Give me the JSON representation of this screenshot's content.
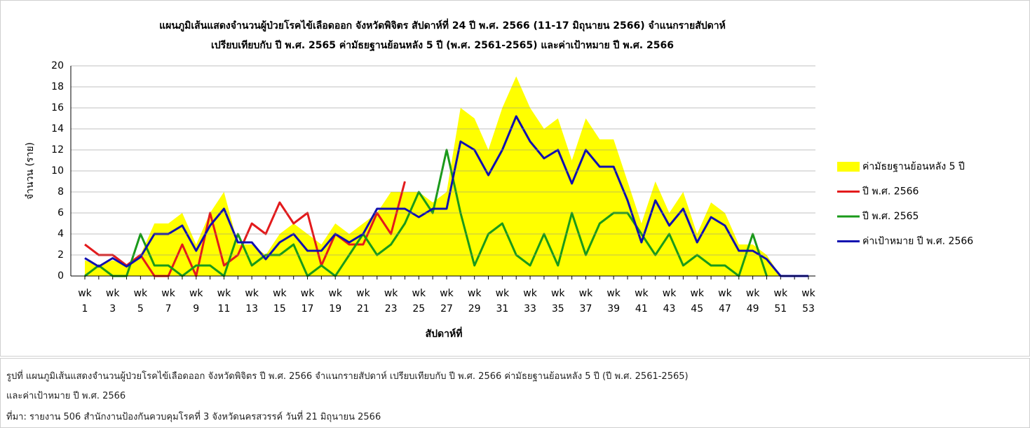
{
  "chart_data": {
    "type": "line",
    "title": "แผนภูมิเส้นแสดงจำนวนผู้ป่วยโรคไข้เลือดออก จังหวัดพิจิตร สัปดาห์ที่ 24 ปี พ.ศ. 2566 (11-17 มิถุนายน 2566) จำแนกรายสัปดาห์",
    "subtitle": "เปรียบเทียบกับ ปี พ.ศ. 2565 ค่ามัธยฐานย้อนหลัง 5 ปี (พ.ศ. 2561-2565) และค่าเป้าหมาย ปี พ.ศ. 2566",
    "y_label": "จำนวน (ราย)",
    "x_label": "สัปดาห์ที่",
    "categories": [
      "wk 1",
      null,
      "wk 3",
      null,
      "wk 5",
      null,
      "wk 7",
      null,
      "wk 9",
      null,
      "wk 11",
      null,
      "wk 13",
      null,
      "wk 15",
      null,
      "wk 17",
      null,
      "wk 19",
      null,
      "wk 21",
      null,
      "wk 23",
      null,
      "wk 25",
      null,
      "wk 27",
      null,
      "wk 29",
      null,
      "wk 31",
      null,
      "wk 33",
      null,
      "wk 35",
      null,
      "wk 37",
      null,
      "wk 39",
      null,
      "wk 41",
      null,
      "wk 43",
      null,
      "wk 45",
      null,
      "wk 47",
      null,
      "wk 49",
      null,
      "wk 51",
      null,
      "wk 53"
    ],
    "ylim": [
      0,
      20
    ],
    "yticks": [
      0,
      2,
      4,
      6,
      8,
      10,
      12,
      14,
      16,
      18,
      20
    ],
    "grid": true,
    "legend": "right",
    "series": [
      {
        "name": "ค่ามัธยฐานย้อนหลัง 5 ปี",
        "type": "area",
        "color": "#ffff00",
        "values": [
          1.5,
          1,
          1.5,
          1,
          2,
          5,
          5,
          6,
          3,
          6,
          8,
          3,
          3,
          2,
          4,
          5,
          4,
          3,
          5,
          4,
          5,
          6,
          8,
          8,
          8,
          7,
          8,
          16,
          15,
          12,
          16,
          19,
          16,
          14,
          15,
          11,
          15,
          13,
          13,
          9,
          5,
          9,
          6,
          8,
          4,
          7,
          6,
          3,
          3,
          2,
          0,
          0,
          0
        ]
      },
      {
        "name": "ปี พ.ศ. 2566",
        "type": "line",
        "color": "#e31a1c",
        "values": [
          3,
          2,
          2,
          1,
          2,
          0,
          0,
          3,
          0,
          6,
          1,
          2,
          5,
          4,
          7,
          5,
          6,
          1,
          4,
          3,
          3,
          6,
          4,
          9,
          null,
          null,
          null,
          null,
          null,
          null,
          null,
          null,
          null,
          null,
          null,
          null,
          null,
          null,
          null,
          null,
          null,
          null,
          null,
          null,
          null,
          null,
          null,
          null,
          null,
          null,
          null,
          null,
          null
        ]
      },
      {
        "name": "ปี พ.ศ. 2565",
        "type": "line",
        "color": "#1a9a1a",
        "values": [
          0,
          1,
          0,
          0,
          4,
          1,
          1,
          0,
          1,
          1,
          0,
          4,
          1,
          2,
          2,
          3,
          0,
          1,
          0,
          2,
          4,
          2,
          3,
          5,
          8,
          6,
          12,
          6,
          1,
          4,
          5,
          2,
          1,
          4,
          1,
          6,
          2,
          5,
          6,
          6,
          4,
          2,
          4,
          1,
          2,
          1,
          1,
          0,
          4,
          0,
          null,
          null,
          null
        ]
      },
      {
        "name": "ค่าเป้าหมาย ปี พ.ศ. 2566",
        "type": "line",
        "color": "#1010b0",
        "values": [
          1.7,
          0.9,
          1.7,
          0.9,
          1.8,
          4,
          4,
          4.8,
          2.4,
          4.8,
          6.4,
          3.2,
          3.2,
          1.6,
          3.2,
          4,
          2.4,
          2.4,
          4,
          3.2,
          4,
          6.4,
          6.4,
          6.4,
          5.6,
          6.4,
          6.4,
          12.8,
          12,
          9.6,
          12,
          15.2,
          12.8,
          11.2,
          12,
          8.8,
          12,
          10.4,
          10.4,
          7.2,
          3.2,
          7.2,
          4.8,
          6.4,
          3.2,
          5.6,
          4.8,
          2.4,
          2.4,
          1.6,
          0,
          0,
          0
        ]
      }
    ]
  },
  "caption": [
    "รูปที่  แผนภูมิเส้นแสดงจำนวนผู้ป่วยโรคไข้เลือดออก จังหวัดพิจิตร ปี พ.ศ. 2566 จำแนกรายสัปดาห์ เปรียบเทียบกับ ปี พ.ศ. 2566 ค่ามัธยฐานย้อนหลัง 5 ปี (ปี พ.ศ. 2561-2565)",
    "และค่าเป้าหมาย ปี พ.ศ. 2566"
  ],
  "source": "ที่มา: รายงาน 506 สำนักงานป้องกันควบคุมโรคที่ 3 จังหวัดนครสวรรค์ วันที่ 21 มิถุนายน  2566"
}
